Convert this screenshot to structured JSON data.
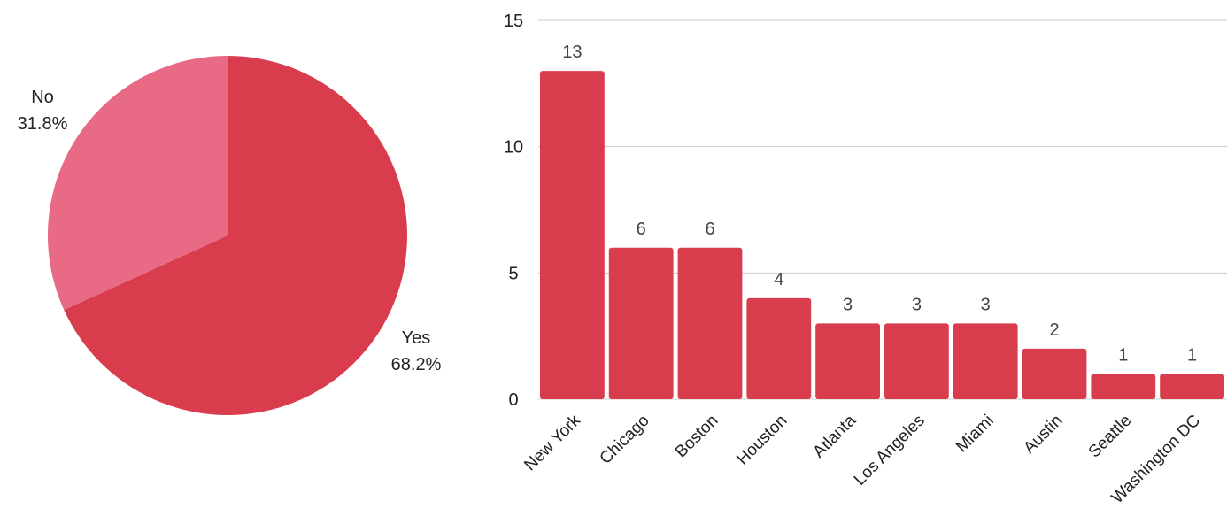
{
  "chart_data": [
    {
      "type": "pie",
      "slices": [
        {
          "label": "Yes",
          "percent_label": "68.2%",
          "value": 68.2,
          "color": "#d93d4d"
        },
        {
          "label": "No",
          "percent_label": "31.8%",
          "value": 31.8,
          "color": "#e96a85"
        }
      ],
      "title": "",
      "legend": "none"
    },
    {
      "type": "bar",
      "categories": [
        "New York",
        "Chicago",
        "Boston",
        "Houston",
        "Atlanta",
        "Los Angeles",
        "Miami",
        "Austin",
        "Seattle",
        "Washington DC"
      ],
      "values": [
        13,
        6,
        6,
        4,
        3,
        3,
        3,
        2,
        1,
        1
      ],
      "value_labels": [
        "13",
        "6",
        "6",
        "4",
        "3",
        "3",
        "3",
        "2",
        "1",
        "1"
      ],
      "ylim": [
        0,
        15
      ],
      "yticks": [
        "0",
        "5",
        "10",
        "15"
      ],
      "grid": true,
      "bar_color": "#d93d4d",
      "title": "",
      "xlabel": "",
      "ylabel": "",
      "legend": "none"
    }
  ]
}
